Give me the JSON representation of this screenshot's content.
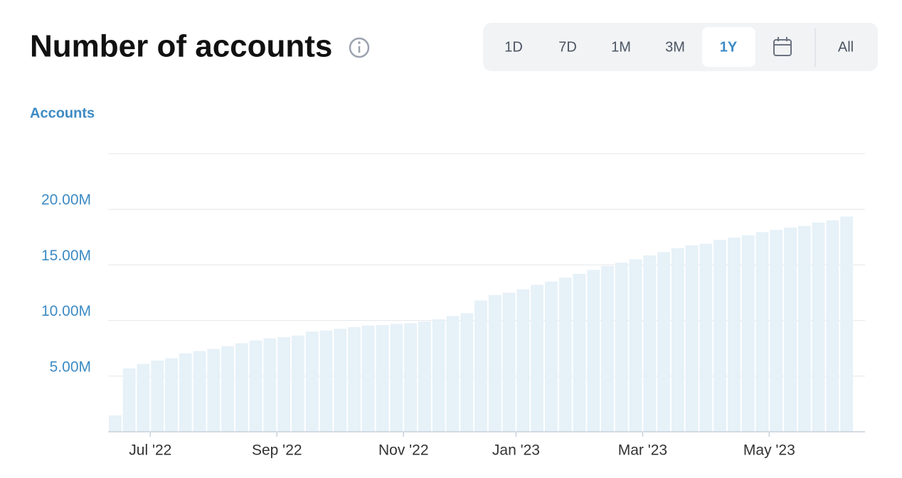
{
  "chart_data": {
    "type": "bar",
    "title": "Number of accounts",
    "y_label": "Accounts",
    "categories": [
      null,
      null,
      null,
      "Jul '22",
      null,
      null,
      null,
      null,
      null,
      null,
      null,
      null,
      "Sep '22",
      null,
      null,
      null,
      null,
      null,
      null,
      null,
      null,
      "Nov '22",
      null,
      null,
      null,
      null,
      null,
      null,
      null,
      "Jan '23",
      null,
      null,
      null,
      null,
      null,
      null,
      null,
      null,
      "Mar '23",
      null,
      null,
      null,
      null,
      null,
      null,
      null,
      null,
      "May '23",
      null,
      null,
      null,
      null,
      null
    ],
    "values": [
      1470000,
      5700000,
      6100000,
      6400000,
      6600000,
      7050000,
      7250000,
      7450000,
      7700000,
      7950000,
      8200000,
      8400000,
      8500000,
      8650000,
      9000000,
      9100000,
      9250000,
      9400000,
      9550000,
      9600000,
      9700000,
      9750000,
      9900000,
      10100000,
      10400000,
      10650000,
      11800000,
      12300000,
      12500000,
      12800000,
      13200000,
      13500000,
      13850000,
      14200000,
      14550000,
      14900000,
      15200000,
      15500000,
      15850000,
      16150000,
      16500000,
      16750000,
      16900000,
      17250000,
      17450000,
      17650000,
      17950000,
      18150000,
      18350000,
      18500000,
      18800000,
      19000000,
      19350000
    ],
    "color": "#e6f1f8",
    "ylim": [
      0,
      25000000
    ],
    "yticks": [
      {
        "value": 5000000,
        "label": "5.00M"
      },
      {
        "value": 10000000,
        "label": "10.00M"
      },
      {
        "value": 15000000,
        "label": "15.00M"
      },
      {
        "value": 20000000,
        "label": "20.00M"
      }
    ],
    "grid": true
  },
  "range_options": [
    {
      "label": "1D"
    },
    {
      "label": "7D"
    },
    {
      "label": "1M"
    },
    {
      "label": "3M"
    },
    {
      "label": "1Y",
      "selected": true
    },
    {
      "label": "All"
    }
  ]
}
